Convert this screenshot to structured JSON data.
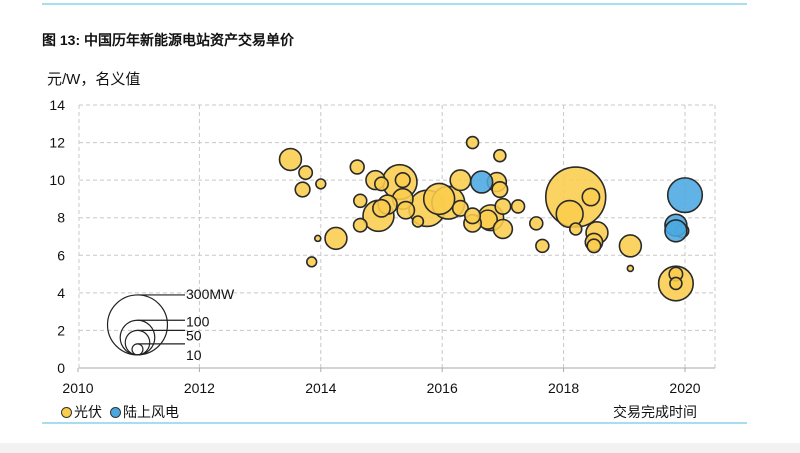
{
  "header": {
    "title": "图 13: 中国历年新能源电站资产交易单价",
    "unit_label": "元/W，名义值"
  },
  "colors": {
    "solar": "#fbcd4d",
    "wind": "#4aa8e0",
    "rule": "#a8dcef"
  },
  "chart_data": {
    "type": "scatter",
    "subtype": "bubble",
    "title": "图 13: 中国历年新能源电站资产交易单价",
    "ylabel": "元/W，名义值",
    "xlabel": "交易完成时间",
    "xlim": [
      2010,
      2020.5
    ],
    "ylim": [
      0,
      14
    ],
    "xticks": [
      2010,
      2012,
      2014,
      2016,
      2018,
      2020
    ],
    "yticks": [
      0,
      2,
      4,
      6,
      8,
      10,
      12,
      14
    ],
    "grid": true,
    "legend_position": "bottom-left",
    "size_legend": {
      "labels": [
        "300MW",
        "100",
        "50",
        "10"
      ],
      "values_mw": [
        300,
        100,
        50,
        10
      ]
    },
    "series": [
      {
        "name": "光伏",
        "color_key": "solar",
        "points": [
          {
            "x": 2013.5,
            "y": 11.1,
            "mw": 40
          },
          {
            "x": 2013.75,
            "y": 10.4,
            "mw": 15
          },
          {
            "x": 2013.7,
            "y": 9.5,
            "mw": 18
          },
          {
            "x": 2014.0,
            "y": 9.8,
            "mw": 8
          },
          {
            "x": 2013.95,
            "y": 6.9,
            "mw": 3
          },
          {
            "x": 2014.25,
            "y": 6.9,
            "mw": 40
          },
          {
            "x": 2013.85,
            "y": 5.65,
            "mw": 8
          },
          {
            "x": 2014.6,
            "y": 10.7,
            "mw": 16
          },
          {
            "x": 2014.65,
            "y": 8.9,
            "mw": 14
          },
          {
            "x": 2014.65,
            "y": 7.6,
            "mw": 15
          },
          {
            "x": 2014.9,
            "y": 10.0,
            "mw": 30
          },
          {
            "x": 2014.95,
            "y": 8.1,
            "mw": 80
          },
          {
            "x": 2015.0,
            "y": 8.5,
            "mw": 25
          },
          {
            "x": 2015.0,
            "y": 9.8,
            "mw": 15
          },
          {
            "x": 2015.1,
            "y": 8.7,
            "mw": 30
          },
          {
            "x": 2015.3,
            "y": 9.9,
            "mw": 100
          },
          {
            "x": 2015.35,
            "y": 10.0,
            "mw": 18
          },
          {
            "x": 2015.35,
            "y": 9.0,
            "mw": 35
          },
          {
            "x": 2015.4,
            "y": 8.4,
            "mw": 25
          },
          {
            "x": 2015.6,
            "y": 7.8,
            "mw": 10
          },
          {
            "x": 2015.75,
            "y": 8.5,
            "mw": 110
          },
          {
            "x": 2015.95,
            "y": 9.0,
            "mw": 80
          },
          {
            "x": 2016.1,
            "y": 8.8,
            "mw": 90
          },
          {
            "x": 2016.3,
            "y": 8.5,
            "mw": 20
          },
          {
            "x": 2016.3,
            "y": 10.0,
            "mw": 35
          },
          {
            "x": 2016.5,
            "y": 12.0,
            "mw": 12
          },
          {
            "x": 2016.5,
            "y": 8.1,
            "mw": 20
          },
          {
            "x": 2016.5,
            "y": 7.7,
            "mw": 25
          },
          {
            "x": 2016.8,
            "y": 8.0,
            "mw": 55
          },
          {
            "x": 2016.75,
            "y": 7.9,
            "mw": 30
          },
          {
            "x": 2016.95,
            "y": 11.3,
            "mw": 12
          },
          {
            "x": 2016.9,
            "y": 9.9,
            "mw": 30
          },
          {
            "x": 2016.95,
            "y": 9.5,
            "mw": 20
          },
          {
            "x": 2017.0,
            "y": 8.6,
            "mw": 20
          },
          {
            "x": 2017.0,
            "y": 7.4,
            "mw": 30
          },
          {
            "x": 2017.25,
            "y": 8.6,
            "mw": 14
          },
          {
            "x": 2017.55,
            "y": 7.7,
            "mw": 14
          },
          {
            "x": 2017.65,
            "y": 6.5,
            "mw": 14
          },
          {
            "x": 2018.2,
            "y": 9.1,
            "mw": 300
          },
          {
            "x": 2018.1,
            "y": 8.2,
            "mw": 60
          },
          {
            "x": 2018.2,
            "y": 7.4,
            "mw": 12
          },
          {
            "x": 2018.45,
            "y": 9.1,
            "mw": 25
          },
          {
            "x": 2018.55,
            "y": 7.2,
            "mw": 40
          },
          {
            "x": 2018.5,
            "y": 6.7,
            "mw": 25
          },
          {
            "x": 2018.5,
            "y": 6.5,
            "mw": 15
          },
          {
            "x": 2019.1,
            "y": 6.5,
            "mw": 40
          },
          {
            "x": 2019.1,
            "y": 5.3,
            "mw": 3
          },
          {
            "x": 2019.95,
            "y": 7.3,
            "mw": 15
          },
          {
            "x": 2019.85,
            "y": 4.5,
            "mw": 100
          },
          {
            "x": 2019.85,
            "y": 5.0,
            "mw": 15
          },
          {
            "x": 2019.85,
            "y": 4.5,
            "mw": 12
          }
        ]
      },
      {
        "name": "陆上风电",
        "color_key": "wind",
        "points": [
          {
            "x": 2016.65,
            "y": 9.9,
            "mw": 40
          },
          {
            "x": 2020.0,
            "y": 9.2,
            "mw": 100
          },
          {
            "x": 2019.85,
            "y": 7.6,
            "mw": 40
          },
          {
            "x": 2019.85,
            "y": 7.3,
            "mw": 40
          }
        ]
      }
    ]
  },
  "legend": {
    "solar_label": "光伏",
    "wind_label": "陆上风电"
  }
}
